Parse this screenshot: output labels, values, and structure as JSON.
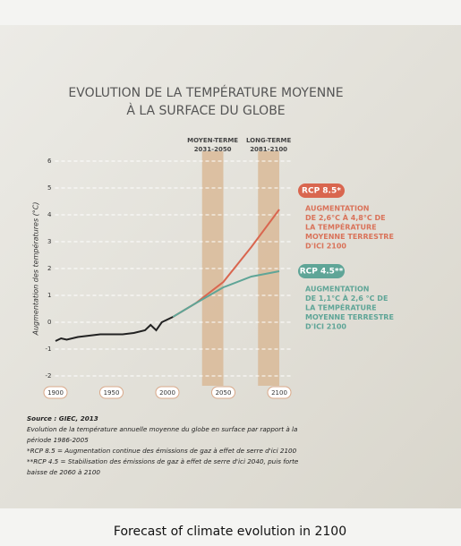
{
  "chart_data": {
    "type": "line",
    "title": [
      "EVOLUTION DE LA TEMPÉRATURE MOYENNE",
      "À LA SURFACE DU GLOBE"
    ],
    "y_label": "Augmentation des températures (°C)",
    "xlim": [
      1890,
      2110
    ],
    "ylim": [
      -2.3,
      6.3
    ],
    "xticks": [
      1900,
      1950,
      2000,
      2050,
      2100
    ],
    "yticks": [
      -2,
      -1,
      0,
      1,
      2,
      3,
      4,
      5,
      6
    ],
    "grid": true,
    "periods": [
      {
        "label": "MOYEN-TERME",
        "range_label": "2031-2050",
        "start": 2031,
        "end": 2050
      },
      {
        "label": "LONG-TERME",
        "range_label": "2081-2100",
        "start": 2081,
        "end": 2100
      }
    ],
    "series": [
      {
        "color": "#222222",
        "x": [
          1900,
          1905,
          1910,
          1920,
          1930,
          1940,
          1950,
          1960,
          1970,
          1980,
          1985,
          1990,
          1995,
          2000,
          2005
        ],
        "values": [
          -0.7,
          -0.6,
          -0.65,
          -0.55,
          -0.5,
          -0.45,
          -0.45,
          -0.45,
          -0.4,
          -0.3,
          -0.1,
          -0.3,
          0.0,
          0.1,
          0.2
        ]
      },
      {
        "name": "RCP 8.5*",
        "color": "#d9664f",
        "x": [
          2005,
          2025,
          2050,
          2075,
          2100
        ],
        "values": [
          0.2,
          0.7,
          1.5,
          2.8,
          4.2
        ]
      },
      {
        "name": "RCP 4.5**",
        "color": "#5fa597",
        "x": [
          2005,
          2025,
          2050,
          2075,
          2100
        ],
        "values": [
          0.2,
          0.7,
          1.3,
          1.7,
          1.9
        ]
      }
    ],
    "annotations": [
      {
        "color": "#d9735a",
        "lines": [
          "AUGMENTATION",
          "DE 2,6°C À 4,8°C DE",
          "LA TEMPÉRATURE",
          "MOYENNE TERRESTRE",
          "D'ICI 2100"
        ]
      },
      {
        "color": "#5fa597",
        "lines": [
          "AUGMENTATION",
          "DE 1,1°C À 2,6 °C DE",
          "LA TEMPÉRATURE",
          "MOYENNE TERRESTRE",
          "D'ICI 2100"
        ]
      }
    ],
    "source": [
      "Source : GIEC, 2013",
      "Evolution de la température annuelle moyenne du globe en surface par rapport à la",
      "période 1986-2005",
      "*RCP 8.5 = Augmentation continue des émissions de gaz à effet de serre d'ici 2100",
      "**RCP 4.5 = Stabilisation des émissions de gaz à effet de serre d'ici 2040, puis forte",
      "baisse de 2060 à 2100"
    ],
    "caption": "Forecast of climate evolution in 2100"
  }
}
